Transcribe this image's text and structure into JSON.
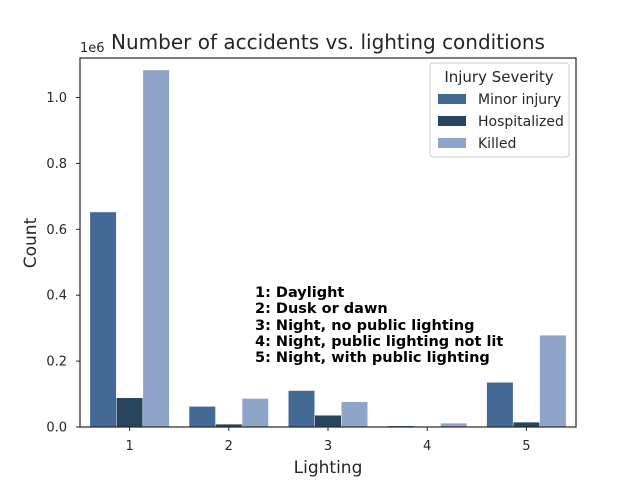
{
  "chart_data": {
    "type": "bar",
    "title": "Number of accidents vs. lighting conditions",
    "xlabel": "Lighting",
    "ylabel": "Count",
    "y_offset_label": "1e6",
    "categories": [
      "1",
      "2",
      "3",
      "4",
      "5"
    ],
    "ylim": [
      0,
      1.12
    ],
    "yticks": [
      "0.0",
      "0.2",
      "0.4",
      "0.6",
      "0.8",
      "1.0"
    ],
    "grid": false,
    "legend": {
      "title": "Injury Severity",
      "placement": "top-right"
    },
    "series": [
      {
        "name": "Minor injury",
        "color": "#436a94",
        "values": [
          0.652,
          0.062,
          0.11,
          0.003,
          0.135
        ]
      },
      {
        "name": "Hospitalized",
        "color": "#27455f",
        "values": [
          0.088,
          0.008,
          0.035,
          0.001,
          0.014
        ]
      },
      {
        "name": "Killed",
        "color": "#8fa4c9",
        "values": [
          1.083,
          0.086,
          0.076,
          0.011,
          0.278
        ]
      }
    ],
    "annotation": [
      "1: Daylight",
      "2: Dusk or dawn",
      "3: Night, no public lighting",
      "4: Night, public lighting not lit",
      "5: Night, with public lighting"
    ]
  }
}
